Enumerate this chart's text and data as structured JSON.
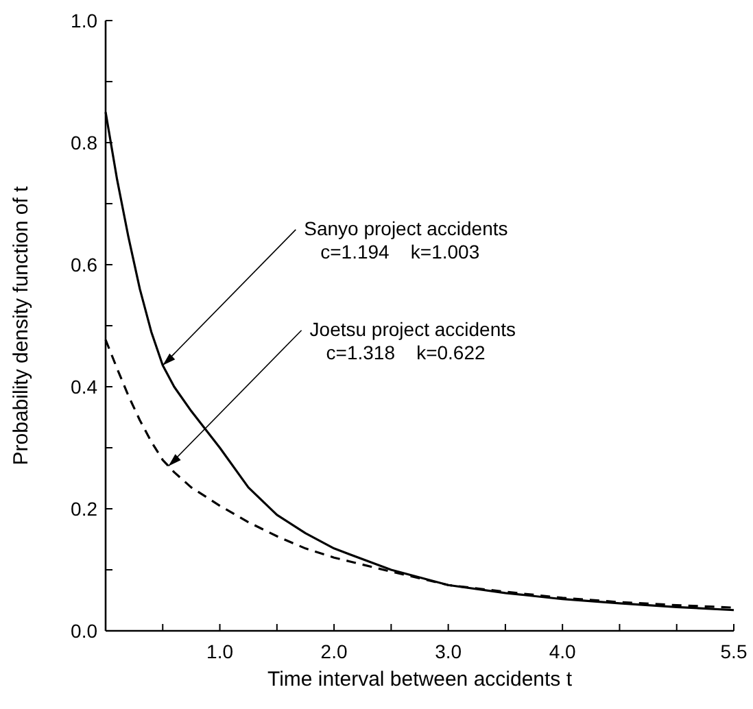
{
  "chart_data": {
    "type": "line",
    "xlabel": "Time interval between accidents t",
    "ylabel": "Probability density function of t",
    "x": [
      0,
      0.1,
      0.2,
      0.3,
      0.4,
      0.5,
      0.6,
      0.75,
      1.0,
      1.25,
      1.5,
      1.75,
      2.0,
      2.5,
      3.0,
      3.5,
      4.0,
      4.5,
      5.0,
      5.5
    ],
    "series": [
      {
        "color": "#000000",
        "line_style": "solid",
        "values": [
          0.85,
          0.74,
          0.645,
          0.56,
          0.49,
          0.435,
          0.4,
          0.36,
          0.3,
          0.235,
          0.19,
          0.16,
          0.135,
          0.1,
          0.075,
          0.062,
          0.052,
          0.045,
          0.039,
          0.034
        ]
      },
      {
        "color": "#000000",
        "line_style": "dashed",
        "values": [
          0.477,
          0.43,
          0.385,
          0.345,
          0.31,
          0.28,
          0.26,
          0.235,
          0.205,
          0.178,
          0.155,
          0.135,
          0.12,
          0.097,
          0.075,
          0.064,
          0.054,
          0.047,
          0.042,
          0.038
        ]
      }
    ],
    "annotations": [
      {
        "text": "Sanyo project accidents\nc=1.194    k=1.003",
        "x": 0.5,
        "y": 0.435
      },
      {
        "text": "Joetsu project accidents\nc=1.318    k=0.622",
        "x": 0.55,
        "y": 0.27
      }
    ],
    "xlim": [
      0,
      5.5
    ],
    "ylim": [
      0,
      1.0
    ],
    "xticks": [
      {
        "value": 0,
        "label": null
      },
      {
        "value": 0.5,
        "label": null
      },
      {
        "value": 1.0,
        "label": "1.0"
      },
      {
        "value": 1.5,
        "label": null
      },
      {
        "value": 2.0,
        "label": "2.0"
      },
      {
        "value": 2.5,
        "label": null
      },
      {
        "value": 3.0,
        "label": "3.0"
      },
      {
        "value": 3.5,
        "label": null
      },
      {
        "value": 4.0,
        "label": "4.0"
      },
      {
        "value": 4.5,
        "label": null
      },
      {
        "value": 5.0,
        "label": null
      },
      {
        "value": 5.5,
        "label": "5.5"
      }
    ],
    "yticks": [
      {
        "value": 0,
        "label": "0.0"
      },
      {
        "value": 0.1,
        "label": null
      },
      {
        "value": 0.2,
        "label": "0.2"
      },
      {
        "value": 0.3,
        "label": null
      },
      {
        "value": 0.4,
        "label": "0.4"
      },
      {
        "value": 0.5,
        "label": null
      },
      {
        "value": 0.6,
        "label": "0.6"
      },
      {
        "value": 0.7,
        "label": null
      },
      {
        "value": 0.8,
        "label": "0.8"
      },
      {
        "value": 0.9,
        "label": null
      },
      {
        "value": 1.0,
        "label": "1.0"
      }
    ],
    "grid": false,
    "marker": "none"
  }
}
